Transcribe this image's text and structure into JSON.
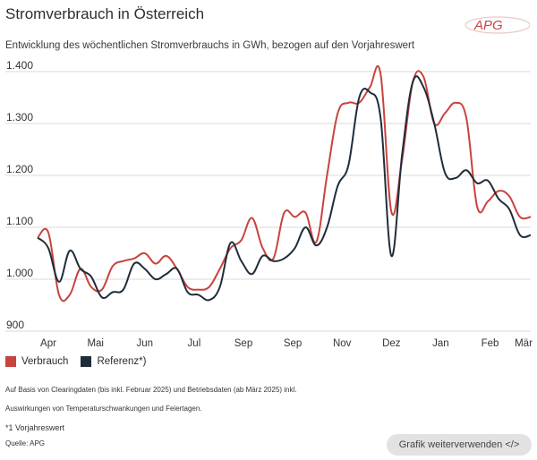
{
  "header": {
    "title": "Stromverbrauch in Österreich",
    "subtitle": "Entwicklung des wöchentlichen Stromverbrauchs in GWh, bezogen auf den Vorjahreswert",
    "logo_text": "APG"
  },
  "colors": {
    "verbrauch": "#c8433e",
    "referenz": "#1f2d3a",
    "grid": "#d9d9d9",
    "axis_text": "#333333",
    "button_bg": "#e2e2e2"
  },
  "chart_data": {
    "type": "line",
    "title": "Stromverbrauch in Österreich",
    "x_tick_labels": [
      "Apr",
      "Mai",
      "Jun",
      "Jul",
      "Sep",
      "Sep",
      "Nov",
      "Dez",
      "Jan",
      "Feb",
      "Mär"
    ],
    "x_tick_positions": [
      0,
      4.4,
      9.0,
      13.6,
      18.2,
      22.8,
      27.4,
      32.0,
      36.6,
      41.2,
      45.8
    ],
    "y_tick_labels": [
      "900",
      "1.000",
      "1.100",
      "1.200",
      "1.300",
      "1.400"
    ],
    "ylim": [
      900,
      1400
    ],
    "grid": true,
    "legend_position": "bottom-left",
    "x": [
      0,
      1,
      2,
      3,
      4,
      5,
      6,
      7,
      8,
      9,
      10,
      11,
      12,
      13,
      14,
      15,
      16,
      17,
      18,
      19,
      20,
      21,
      22,
      23,
      24,
      25,
      26,
      27,
      28,
      29,
      30,
      31,
      32,
      33,
      34,
      35,
      36,
      37,
      38,
      39,
      40,
      41,
      42,
      43,
      44,
      45,
      46
    ],
    "series": [
      {
        "name": "Verbrauch",
        "values": [
          1080,
          1090,
          970,
          970,
          1020,
          985,
          980,
          1025,
          1035,
          1040,
          1050,
          1030,
          1045,
          1020,
          985,
          980,
          985,
          1020,
          1060,
          1075,
          1118,
          1060,
          1040,
          1128,
          1120,
          1128,
          1072,
          1200,
          1320,
          1340,
          1340,
          1370,
          1395,
          1130,
          1230,
          1380,
          1390,
          1300,
          1320,
          1340,
          1310,
          1140,
          1150,
          1170,
          1160,
          1120,
          1120
        ],
        "color": "#c8433e"
      },
      {
        "name": "Referenz*)",
        "values": [
          1080,
          1060,
          995,
          1055,
          1020,
          1005,
          965,
          975,
          980,
          1030,
          1020,
          1000,
          1010,
          1020,
          975,
          970,
          960,
          985,
          1070,
          1035,
          1010,
          1045,
          1035,
          1040,
          1060,
          1100,
          1065,
          1100,
          1180,
          1220,
          1350,
          1360,
          1310,
          1045,
          1240,
          1380,
          1370,
          1300,
          1205,
          1195,
          1210,
          1185,
          1190,
          1155,
          1135,
          1085,
          1085
        ],
        "color": "#1f2d3a"
      }
    ]
  },
  "legend": [
    {
      "label": "Verbrauch",
      "color": "#c8433e"
    },
    {
      "label": "Referenz*)",
      "color": "#1f2d3a"
    }
  ],
  "notes": {
    "line1": "Auf Basis von Clearingdaten (bis inkl. Februar 2025) und Betriebsdaten (ab März  2025) inkl.",
    "line2": "Auswirkungen von Temperaturschwankungen und Feiertagen.",
    "footnote": "*1 Vorjahreswert",
    "source": "Quelle: APG"
  },
  "button": {
    "label": "Grafik weiterverwenden </>"
  }
}
